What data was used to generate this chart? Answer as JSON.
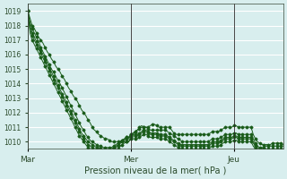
{
  "title": "",
  "xlabel": "Pression niveau de la mer( hPa )",
  "ylabel": "",
  "bg_color": "#d8eeee",
  "plot_bg_color": "#d8eeee",
  "grid_color": "#ffffff",
  "line_color": "#1a5c1a",
  "axis_color": "#3a3a3a",
  "tick_label_color": "#2a4a2a",
  "ylim": [
    1009.5,
    1019.5
  ],
  "yticks": [
    1010,
    1011,
    1012,
    1013,
    1014,
    1015,
    1016,
    1017,
    1018,
    1019
  ],
  "xtick_labels": [
    "Mar",
    "Mer",
    "Jeu"
  ],
  "xtick_positions": [
    0,
    48,
    96
  ],
  "total_points": 144,
  "series": [
    [
      1019,
      1018.5,
      1018.0,
      1017.8,
      1017.5,
      1017.2,
      1017.0,
      1016.8,
      1016.5,
      1016.2,
      1016.0,
      1015.7,
      1015.5,
      1015.2,
      1015.0,
      1014.8,
      1014.5,
      1014.3,
      1014.0,
      1013.7,
      1013.5,
      1013.2,
      1013.0,
      1012.8,
      1012.5,
      1012.2,
      1012.0,
      1011.8,
      1011.5,
      1011.3,
      1011.0,
      1010.8,
      1010.7,
      1010.5,
      1010.4,
      1010.3,
      1010.2,
      1010.2,
      1010.1,
      1010.0,
      1010.0,
      1010.0,
      1010.0,
      1010.0,
      1010.0,
      1010.0,
      1010.0,
      1010.0,
      1010.3,
      1010.5,
      1010.7,
      1010.8,
      1011.0,
      1011.1,
      1011.0,
      1011.0,
      1011.0,
      1011.1,
      1011.2,
      1011.2,
      1011.1,
      1011.0,
      1011.0,
      1011.0,
      1011.0,
      1011.0,
      1011.0,
      1010.8,
      1010.6,
      1010.5,
      1010.5,
      1010.5,
      1010.5,
      1010.5,
      1010.5,
      1010.5,
      1010.5,
      1010.5,
      1010.5,
      1010.5,
      1010.5,
      1010.5,
      1010.5,
      1010.5,
      1010.5,
      1010.6,
      1010.7,
      1010.7,
      1010.7,
      1010.7,
      1010.8,
      1010.9,
      1011.0,
      1011.0,
      1011.0,
      1011.0,
      1011.1,
      1011.1,
      1011.0,
      1011.0,
      1011.0,
      1011.0,
      1011.0,
      1011.0,
      1011.0,
      1010.5,
      1010.2,
      1010.0,
      1009.9,
      1009.8,
      1009.8,
      1009.8,
      1009.8,
      1009.8,
      1009.9,
      1009.9,
      1009.9,
      1009.9,
      1009.9,
      1009.8
    ],
    [
      1019,
      1018.2,
      1017.8,
      1017.5,
      1017.2,
      1016.9,
      1016.5,
      1016.2,
      1015.9,
      1015.6,
      1015.3,
      1015.0,
      1014.8,
      1014.5,
      1014.2,
      1014.0,
      1013.7,
      1013.4,
      1013.1,
      1012.8,
      1012.5,
      1012.2,
      1011.9,
      1011.6,
      1011.3,
      1011.0,
      1010.8,
      1010.5,
      1010.3,
      1010.1,
      1010.0,
      1009.9,
      1009.8,
      1009.7,
      1009.7,
      1009.6,
      1009.6,
      1009.6,
      1009.6,
      1009.6,
      1009.7,
      1009.8,
      1009.9,
      1010.0,
      1010.1,
      1010.2,
      1010.3,
      1010.3,
      1010.5,
      1010.6,
      1010.7,
      1010.8,
      1010.9,
      1011.0,
      1011.0,
      1011.0,
      1010.9,
      1010.8,
      1010.8,
      1010.8,
      1010.8,
      1010.8,
      1010.8,
      1010.8,
      1010.8,
      1010.7,
      1010.6,
      1010.5,
      1010.4,
      1010.3,
      1010.2,
      1010.1,
      1010.0,
      1010.0,
      1010.0,
      1010.0,
      1010.0,
      1010.0,
      1010.0,
      1010.0,
      1010.0,
      1010.0,
      1010.0,
      1010.0,
      1010.0,
      1010.1,
      1010.2,
      1010.2,
      1010.2,
      1010.2,
      1010.3,
      1010.4,
      1010.5,
      1010.5,
      1010.5,
      1010.5,
      1010.6,
      1010.6,
      1010.5,
      1010.5,
      1010.5,
      1010.5,
      1010.5,
      1010.5,
      1010.5,
      1010.2,
      1009.9,
      1009.7,
      1009.6,
      1009.6,
      1009.6,
      1009.7,
      1009.7,
      1009.7,
      1009.7,
      1009.7,
      1009.7,
      1009.7,
      1009.7,
      1009.7
    ],
    [
      1019,
      1018.0,
      1017.5,
      1017.2,
      1016.9,
      1016.6,
      1016.3,
      1016.0,
      1015.7,
      1015.4,
      1015.1,
      1014.8,
      1014.5,
      1014.2,
      1013.9,
      1013.6,
      1013.3,
      1013.0,
      1012.7,
      1012.4,
      1012.1,
      1011.8,
      1011.5,
      1011.2,
      1010.9,
      1010.6,
      1010.4,
      1010.2,
      1010.0,
      1009.9,
      1009.8,
      1009.7,
      1009.6,
      1009.6,
      1009.5,
      1009.5,
      1009.5,
      1009.5,
      1009.5,
      1009.5,
      1009.6,
      1009.7,
      1009.8,
      1010.0,
      1010.1,
      1010.2,
      1010.3,
      1010.3,
      1010.5,
      1010.5,
      1010.5,
      1010.5,
      1010.6,
      1010.7,
      1010.8,
      1010.8,
      1010.7,
      1010.6,
      1010.6,
      1010.6,
      1010.6,
      1010.5,
      1010.5,
      1010.5,
      1010.5,
      1010.4,
      1010.3,
      1010.2,
      1010.1,
      1010.0,
      1009.9,
      1009.8,
      1009.8,
      1009.8,
      1009.8,
      1009.8,
      1009.8,
      1009.8,
      1009.8,
      1009.8,
      1009.8,
      1009.8,
      1009.8,
      1009.8,
      1009.8,
      1009.9,
      1010.0,
      1010.0,
      1010.0,
      1010.0,
      1010.1,
      1010.2,
      1010.3,
      1010.3,
      1010.3,
      1010.3,
      1010.4,
      1010.4,
      1010.3,
      1010.3,
      1010.3,
      1010.3,
      1010.3,
      1010.3,
      1010.3,
      1010.0,
      1009.8,
      1009.6,
      1009.5,
      1009.5,
      1009.5,
      1009.5,
      1009.5,
      1009.5,
      1009.5,
      1009.5,
      1009.5,
      1009.5,
      1009.5,
      1009.5
    ],
    [
      1019,
      1017.8,
      1017.3,
      1017.0,
      1016.7,
      1016.4,
      1016.1,
      1015.8,
      1015.5,
      1015.2,
      1014.9,
      1014.6,
      1014.3,
      1014.0,
      1013.7,
      1013.4,
      1013.1,
      1012.8,
      1012.5,
      1012.2,
      1011.9,
      1011.6,
      1011.3,
      1011.0,
      1010.7,
      1010.4,
      1010.2,
      1010.0,
      1009.8,
      1009.7,
      1009.6,
      1009.5,
      1009.5,
      1009.4,
      1009.4,
      1009.4,
      1009.4,
      1009.4,
      1009.4,
      1009.4,
      1009.5,
      1009.6,
      1009.7,
      1009.9,
      1010.0,
      1010.1,
      1010.2,
      1010.2,
      1010.4,
      1010.4,
      1010.4,
      1010.4,
      1010.5,
      1010.6,
      1010.7,
      1010.7,
      1010.6,
      1010.5,
      1010.5,
      1010.5,
      1010.5,
      1010.4,
      1010.4,
      1010.4,
      1010.4,
      1010.3,
      1010.2,
      1010.1,
      1010.0,
      1009.9,
      1009.8,
      1009.7,
      1009.7,
      1009.7,
      1009.7,
      1009.7,
      1009.7,
      1009.7,
      1009.7,
      1009.7,
      1009.7,
      1009.7,
      1009.7,
      1009.7,
      1009.7,
      1009.8,
      1009.9,
      1009.9,
      1009.9,
      1009.9,
      1010.0,
      1010.1,
      1010.2,
      1010.2,
      1010.2,
      1010.2,
      1010.3,
      1010.3,
      1010.2,
      1010.2,
      1010.2,
      1010.2,
      1010.2,
      1010.2,
      1010.2,
      1009.9,
      1009.7,
      1009.5,
      1009.4,
      1009.4,
      1009.4,
      1009.4,
      1009.4,
      1009.4,
      1009.4,
      1009.4,
      1009.4,
      1009.4,
      1009.4,
      1009.4
    ],
    [
      1019,
      1017.5,
      1017.0,
      1016.7,
      1016.4,
      1016.1,
      1015.8,
      1015.5,
      1015.2,
      1014.9,
      1014.6,
      1014.3,
      1014.0,
      1013.7,
      1013.4,
      1013.1,
      1012.8,
      1012.5,
      1012.2,
      1011.9,
      1011.6,
      1011.3,
      1011.0,
      1010.7,
      1010.4,
      1010.2,
      1010.0,
      1009.8,
      1009.6,
      1009.5,
      1009.4,
      1009.3,
      1009.3,
      1009.2,
      1009.2,
      1009.2,
      1009.2,
      1009.2,
      1009.2,
      1009.2,
      1009.3,
      1009.4,
      1009.5,
      1009.7,
      1009.8,
      1009.9,
      1010.0,
      1010.0,
      1010.2,
      1010.2,
      1010.2,
      1010.2,
      1010.3,
      1010.4,
      1010.5,
      1010.5,
      1010.4,
      1010.3,
      1010.3,
      1010.3,
      1010.3,
      1010.2,
      1010.2,
      1010.2,
      1010.2,
      1010.1,
      1010.0,
      1009.9,
      1009.8,
      1009.7,
      1009.6,
      1009.5,
      1009.5,
      1009.5,
      1009.5,
      1009.5,
      1009.5,
      1009.5,
      1009.5,
      1009.5,
      1009.5,
      1009.5,
      1009.5,
      1009.5,
      1009.5,
      1009.6,
      1009.7,
      1009.7,
      1009.7,
      1009.7,
      1009.8,
      1009.9,
      1010.0,
      1010.0,
      1010.0,
      1010.0,
      1010.1,
      1010.1,
      1010.0,
      1010.0,
      1010.0,
      1010.0,
      1010.0,
      1010.0,
      1010.0,
      1009.7,
      1009.5,
      1009.3,
      1009.2,
      1009.2,
      1009.2,
      1009.2,
      1009.2,
      1009.2,
      1009.2,
      1009.2,
      1009.2,
      1009.2,
      1009.2,
      1009.2
    ]
  ]
}
